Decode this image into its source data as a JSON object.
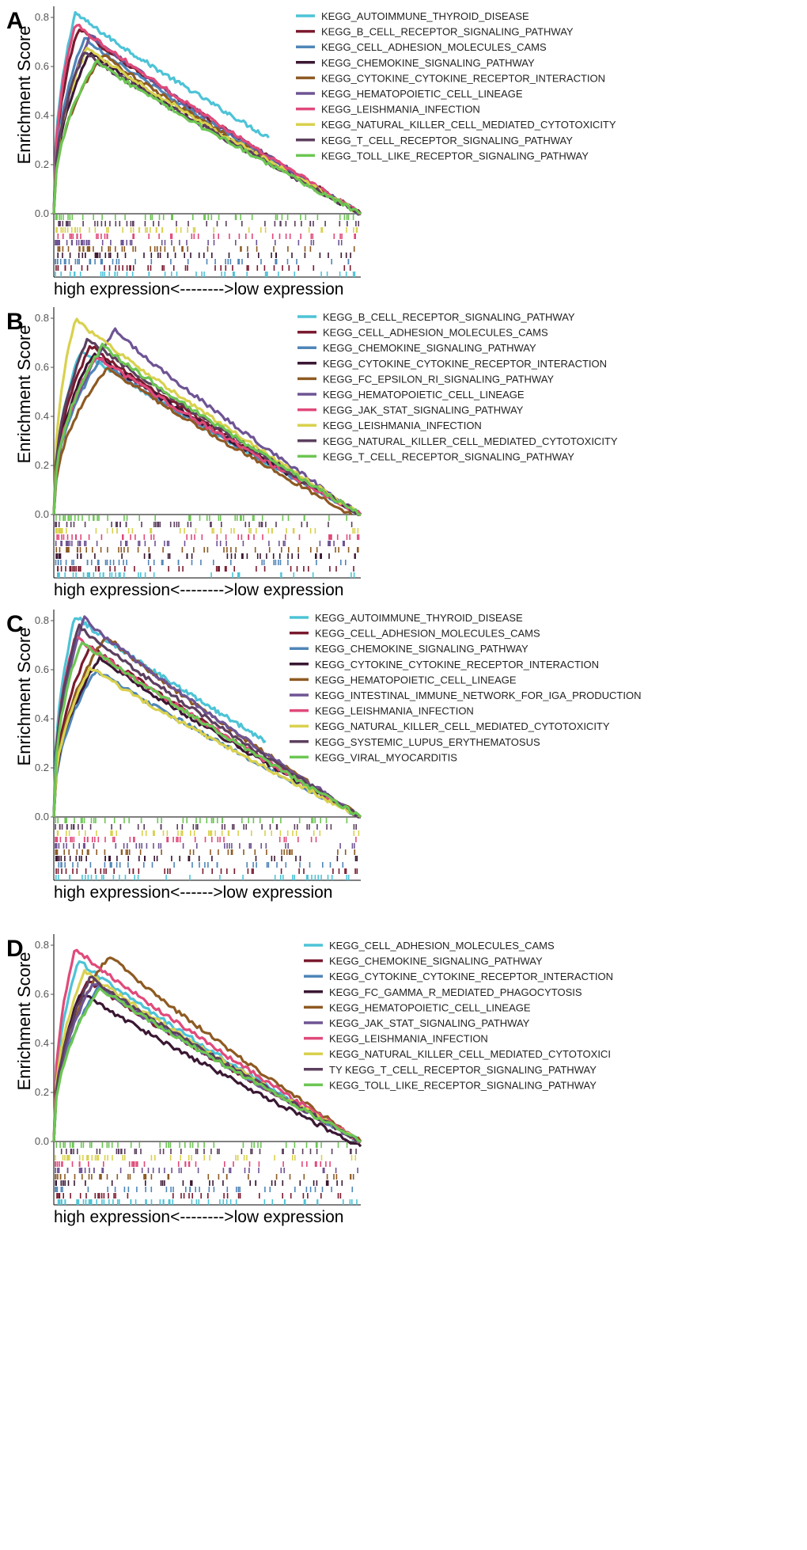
{
  "figure": {
    "ylabel": "Enrichment Score",
    "yticks": [
      "0.0",
      "0.2",
      "0.4",
      "0.6",
      "0.8"
    ]
  },
  "chart_data": [
    {
      "type": "line",
      "panel": "A",
      "ylabel": "Enrichment Score",
      "xlabel": "high expression<-------->low expression",
      "ylim": [
        0,
        0.8
      ],
      "series": [
        {
          "name": "KEGG_AUTOIMMUNE_THYROID_DISEASE",
          "color": "#4DC3D6",
          "peak": 0.82,
          "peak_at": 0.07,
          "end": 0.31,
          "end_at": 0.7
        },
        {
          "name": "KEGG_B_CELL_RECEPTOR_SIGNALING_PATHWAY",
          "color": "#7A1A2E",
          "peak": 0.76,
          "peak_at": 0.08,
          "end": 0.0,
          "end_at": 1.0
        },
        {
          "name": "KEGG_CELL_ADHESION_MOLECULES_CAMS",
          "color": "#4F86B8",
          "peak": 0.72,
          "peak_at": 0.1,
          "end": 0.0,
          "end_at": 1.0
        },
        {
          "name": "KEGG_CHEMOKINE_SIGNALING_PATHWAY",
          "color": "#3A1733",
          "peak": 0.66,
          "peak_at": 0.12,
          "end": 0.0,
          "end_at": 1.0
        },
        {
          "name": "KEGG_CYTOKINE_CYTOKINE_RECEPTOR_INTERACTION",
          "color": "#8E5A22",
          "peak": 0.65,
          "peak_at": 0.16,
          "end": 0.0,
          "end_at": 1.0
        },
        {
          "name": "KEGG_HEMATOPOIETIC_CELL_LINEAGE",
          "color": "#6E5494",
          "peak": 0.73,
          "peak_at": 0.12,
          "end": 0.0,
          "end_at": 1.0
        },
        {
          "name": "KEGG_LEISHMANIA_INFECTION",
          "color": "#E04A7A",
          "peak": 0.78,
          "peak_at": 0.07,
          "end": 0.0,
          "end_at": 1.0
        },
        {
          "name": "KEGG_NATURAL_KILLER_CELL_MEDIATED_CYTOTOXICITY",
          "color": "#D9D14E",
          "peak": 0.68,
          "peak_at": 0.11,
          "end": 0.0,
          "end_at": 1.0
        },
        {
          "name": "KEGG_T_CELL_RECEPTOR_SIGNALING_PATHWAY",
          "color": "#5C3F5E",
          "peak": 0.66,
          "peak_at": 0.1,
          "end": 0.0,
          "end_at": 1.0
        },
        {
          "name": "KEGG_TOLL_LIKE_RECEPTOR_SIGNALING_PATHWAY",
          "color": "#6CC653",
          "peak": 0.62,
          "peak_at": 0.14,
          "end": 0.0,
          "end_at": 1.0
        }
      ]
    },
    {
      "type": "line",
      "panel": "B",
      "ylabel": "Enrichment Score",
      "xlabel": "high expression<-------->low expression",
      "ylim": [
        0,
        0.8
      ],
      "series": [
        {
          "name": "KEGG_B_CELL_RECEPTOR_SIGNALING_PATHWAY",
          "color": "#4DC3D6",
          "peak": 0.67,
          "peak_at": 0.09,
          "end": 0.0,
          "end_at": 1.0
        },
        {
          "name": "KEGG_CELL_ADHESION_MOLECULES_CAMS",
          "color": "#7A1A2E",
          "peak": 0.69,
          "peak_at": 0.12,
          "end": 0.0,
          "end_at": 1.0
        },
        {
          "name": "KEGG_CHEMOKINE_SIGNALING_PATHWAY",
          "color": "#4F86B8",
          "peak": 0.63,
          "peak_at": 0.15,
          "end": 0.0,
          "end_at": 1.0
        },
        {
          "name": "KEGG_CYTOKINE_CYTOKINE_RECEPTOR_INTERACTION",
          "color": "#3A1733",
          "peak": 0.66,
          "peak_at": 0.13,
          "end": 0.0,
          "end_at": 1.0
        },
        {
          "name": "KEGG_FC_EPSILON_RI_SIGNALING_PATHWAY",
          "color": "#8E5A22",
          "peak": 0.6,
          "peak_at": 0.18,
          "end": 0.0,
          "end_at": 0.97
        },
        {
          "name": "KEGG_HEMATOPOIETIC_CELL_LINEAGE",
          "color": "#6E5494",
          "peak": 0.75,
          "peak_at": 0.2,
          "end": 0.0,
          "end_at": 1.0
        },
        {
          "name": "KEGG_JAK_STAT_SIGNALING_PATHWAY",
          "color": "#E04A7A",
          "peak": 0.65,
          "peak_at": 0.14,
          "end": 0.0,
          "end_at": 1.0
        },
        {
          "name": "KEGG_LEISHMANIA_INFECTION",
          "color": "#D9D14E",
          "peak": 0.8,
          "peak_at": 0.07,
          "end": 0.0,
          "end_at": 1.0
        },
        {
          "name": "KEGG_NATURAL_KILLER_CELL_MEDIATED_CYTOTOXICITY",
          "color": "#5C3F5E",
          "peak": 0.72,
          "peak_at": 0.11,
          "end": 0.0,
          "end_at": 1.0
        },
        {
          "name": "KEGG_T_CELL_RECEPTOR_SIGNALING_PATHWAY",
          "color": "#6CC653",
          "peak": 0.69,
          "peak_at": 0.16,
          "end": 0.0,
          "end_at": 1.0
        }
      ]
    },
    {
      "type": "line",
      "panel": "C",
      "ylabel": "Enrichment Score",
      "xlabel": "high expression<------>low expression",
      "ylim": [
        0,
        0.8
      ],
      "series": [
        {
          "name": "KEGG_AUTOIMMUNE_THYROID_DISEASE",
          "color": "#4DC3D6",
          "peak": 0.82,
          "peak_at": 0.07,
          "end": 0.31,
          "end_at": 0.69
        },
        {
          "name": "KEGG_CELL_ADHESION_MOLECULES_CAMS",
          "color": "#7A1A2E",
          "peak": 0.7,
          "peak_at": 0.12,
          "end": 0.0,
          "end_at": 1.0
        },
        {
          "name": "KEGG_CHEMOKINE_SIGNALING_PATHWAY",
          "color": "#4F86B8",
          "peak": 0.6,
          "peak_at": 0.14,
          "end": 0.0,
          "end_at": 1.0
        },
        {
          "name": "KEGG_CYTOKINE_CYTOKINE_RECEPTOR_INTERACTION",
          "color": "#3A1733",
          "peak": 0.65,
          "peak_at": 0.15,
          "end": 0.0,
          "end_at": 1.0
        },
        {
          "name": "KEGG_HEMATOPOIETIC_CELL_LINEAGE",
          "color": "#8E5A22",
          "peak": 0.74,
          "peak_at": 0.17,
          "end": 0.0,
          "end_at": 1.0
        },
        {
          "name": "KEGG_INTESTINAL_IMMUNE_NETWORK_FOR_IGA_PRODUCTION",
          "color": "#6E5494",
          "peak": 0.81,
          "peak_at": 0.1,
          "end": 0.0,
          "end_at": 1.0
        },
        {
          "name": "KEGG_LEISHMANIA_INFECTION",
          "color": "#E04A7A",
          "peak": 0.74,
          "peak_at": 0.07,
          "end": 0.0,
          "end_at": 1.0
        },
        {
          "name": "KEGG_NATURAL_KILLER_CELL_MEDIATED_CYTOTOXICITY",
          "color": "#D9D14E",
          "peak": 0.61,
          "peak_at": 0.12,
          "end": 0.0,
          "end_at": 1.0
        },
        {
          "name": "KEGG_SYSTEMIC_LUPUS_ERYTHEMATOSUS",
          "color": "#5C3F5E",
          "peak": 0.78,
          "peak_at": 0.08,
          "end": 0.0,
          "end_at": 1.0
        },
        {
          "name": "KEGG_VIRAL_MYOCARDITIS",
          "color": "#6CC653",
          "peak": 0.72,
          "peak_at": 0.09,
          "end": 0.0,
          "end_at": 1.0
        }
      ]
    },
    {
      "type": "line",
      "panel": "D",
      "ylabel": "Enrichment Score",
      "xlabel": "high expression<-------->low expression",
      "ylim": [
        0,
        0.8
      ],
      "series": [
        {
          "name": "KEGG_CELL_ADHESION_MOLECULES_CAMS",
          "color": "#4DC3D6",
          "peak": 0.74,
          "peak_at": 0.08,
          "end": 0.0,
          "end_at": 1.0
        },
        {
          "name": "KEGG_CHEMOKINE_SIGNALING_PATHWAY",
          "color": "#7A1A2E",
          "peak": 0.66,
          "peak_at": 0.11,
          "end": 0.0,
          "end_at": 1.0
        },
        {
          "name": "KEGG_CYTOKINE_CYTOKINE_RECEPTOR_INTERACTION",
          "color": "#4F86B8",
          "peak": 0.64,
          "peak_at": 0.15,
          "end": 0.0,
          "end_at": 1.0
        },
        {
          "name": "KEGG_FC_GAMMA_R_MEDIATED_PHAGOCYTOSIS",
          "color": "#3A1733",
          "peak": 0.61,
          "peak_at": 0.09,
          "end": -0.02,
          "end_at": 1.0
        },
        {
          "name": "KEGG_HEMATOPOIETIC_CELL_LINEAGE",
          "color": "#8E5A22",
          "peak": 0.76,
          "peak_at": 0.18,
          "end": 0.0,
          "end_at": 1.0
        },
        {
          "name": "KEGG_JAK_STAT_SIGNALING_PATHWAY",
          "color": "#6E5494",
          "peak": 0.65,
          "peak_at": 0.13,
          "end": 0.0,
          "end_at": 1.0
        },
        {
          "name": "KEGG_LEISHMANIA_INFECTION",
          "color": "#E04A7A",
          "peak": 0.79,
          "peak_at": 0.07,
          "end": 0.0,
          "end_at": 1.0
        },
        {
          "name": "KEGG_NATURAL_KILLER_CELL_MEDIATED_CYTOTOXICI TY",
          "label_lines": [
            "KEGG_NATURAL_KILLER_CELL_MEDIATED_CYTOTOXICI"
          ],
          "color": "#D9D14E",
          "peak": 0.7,
          "peak_at": 0.1,
          "end": 0.0,
          "end_at": 1.0
        },
        {
          "name": "KEGG_T_CELL_RECEPTOR_SIGNALING_PATHWAY",
          "label_lines": [
            "TY KEGG_T_CELL_RECEPTOR_SIGNALING_PATHWAY"
          ],
          "color": "#5C3F5E",
          "peak": 0.67,
          "peak_at": 0.12,
          "end": 0.0,
          "end_at": 1.0
        },
        {
          "name": "KEGG_TOLL_LIKE_RECEPTOR_SIGNALING_PATHWAY",
          "color": "#6CC653",
          "peak": 0.63,
          "peak_at": 0.15,
          "end": 0.0,
          "end_at": 1.0
        }
      ]
    }
  ]
}
